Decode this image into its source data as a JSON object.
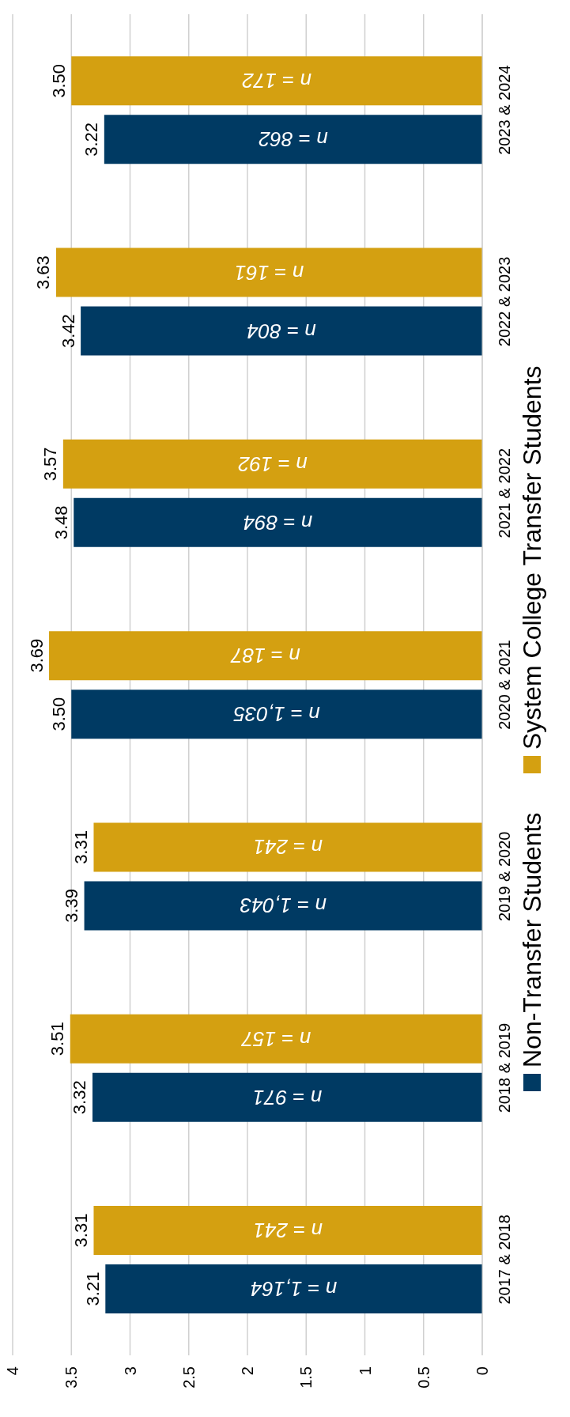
{
  "chart_data": {
    "type": "bar",
    "orientation": "horizontal",
    "categories": [
      "2023 & 2024",
      "2022 & 2023",
      "2021 & 2022",
      "2020 & 2021",
      "2019 & 2020",
      "2018 & 2019",
      "2017 & 2018"
    ],
    "series": [
      {
        "name": "Non-Transfer Students",
        "color": "#003a63",
        "values": [
          3.22,
          3.42,
          3.48,
          3.5,
          3.39,
          3.32,
          3.21
        ],
        "value_labels": [
          "3.22",
          "3.42",
          "3.48",
          "3.50",
          "3.39",
          "3.32",
          "3.21"
        ]
      },
      {
        "name": "System College Transfer Students",
        "color": "#d4a011",
        "values": [
          3.5,
          3.63,
          3.57,
          3.69,
          3.31,
          3.51,
          3.31
        ],
        "value_labels": [
          "3.50",
          "3.63",
          "3.57",
          "3.69",
          "3.31",
          "3.51",
          "3.31"
        ]
      }
    ],
    "xlim": [
      4,
      0
    ],
    "xticks": [
      4,
      3.5,
      3,
      2.5,
      2,
      1.5,
      1,
      0.5,
      0
    ],
    "grid": "x",
    "legend": "right",
    "annotations": [
      "n = 862",
      "n = 172",
      "n = 804",
      "n = 161",
      "n = 894",
      "n = 192",
      "n = 1,035",
      "n = 187",
      "n = 1,043",
      "n = 241",
      "n = 971",
      "n = 157",
      "n = 1,164",
      "n = 241"
    ]
  }
}
